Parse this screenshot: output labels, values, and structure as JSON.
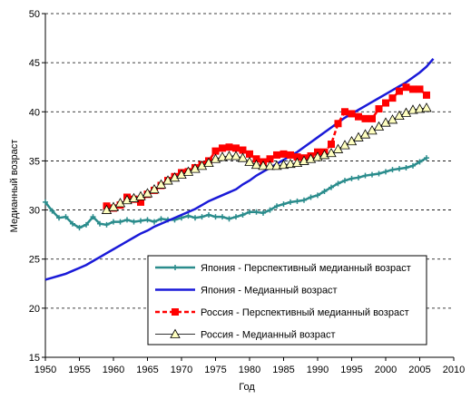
{
  "chart_data": {
    "type": "line",
    "xlabel": "Год",
    "ylabel": "Медианный возраст",
    "xlim": [
      1950,
      2010
    ],
    "xticks": [
      1950,
      1955,
      1960,
      1965,
      1970,
      1975,
      1980,
      1985,
      1990,
      1995,
      2000,
      2005,
      2010
    ],
    "ylim": [
      15,
      50
    ],
    "yticks": [
      15,
      20,
      25,
      30,
      35,
      40,
      45,
      50
    ],
    "grid": true,
    "legend": "lower right",
    "series": [
      {
        "name": "Япония - Перспективный медианный возраст",
        "color": "#2a8c8c",
        "marker": "plus",
        "dash": false,
        "x": [
          1950,
          1951,
          1952,
          1953,
          1954,
          1955,
          1956,
          1957,
          1958,
          1959,
          1960,
          1961,
          1962,
          1963,
          1964,
          1965,
          1966,
          1967,
          1968,
          1969,
          1970,
          1971,
          1972,
          1973,
          1974,
          1975,
          1976,
          1977,
          1978,
          1979,
          1980,
          1981,
          1982,
          1983,
          1984,
          1985,
          1986,
          1987,
          1988,
          1989,
          1990,
          1991,
          1992,
          1993,
          1994,
          1995,
          1996,
          1997,
          1998,
          1999,
          2000,
          2001,
          2002,
          2003,
          2004,
          2005,
          2006
        ],
        "values": [
          30.8,
          29.9,
          29.2,
          29.3,
          28.6,
          28.2,
          28.5,
          29.3,
          28.6,
          28.5,
          28.8,
          28.8,
          29.0,
          28.8,
          28.9,
          29.0,
          28.8,
          29.1,
          29.0,
          29.0,
          29.2,
          29.4,
          29.2,
          29.3,
          29.5,
          29.3,
          29.3,
          29.1,
          29.3,
          29.5,
          29.8,
          29.8,
          29.7,
          30.0,
          30.4,
          30.6,
          30.8,
          30.9,
          31.0,
          31.3,
          31.5,
          31.9,
          32.3,
          32.7,
          33.0,
          33.2,
          33.3,
          33.5,
          33.6,
          33.7,
          33.9,
          34.1,
          34.2,
          34.3,
          34.5,
          34.9,
          35.3
        ]
      },
      {
        "name": "Япония - Медианный возраст",
        "color": "#1a1ad8",
        "marker": "none",
        "dash": false,
        "x": [
          1950,
          1951,
          1952,
          1953,
          1954,
          1955,
          1956,
          1957,
          1958,
          1959,
          1960,
          1961,
          1962,
          1963,
          1964,
          1965,
          1966,
          1967,
          1968,
          1969,
          1970,
          1971,
          1972,
          1973,
          1974,
          1975,
          1976,
          1977,
          1978,
          1979,
          1980,
          1981,
          1982,
          1983,
          1984,
          1985,
          1986,
          1987,
          1988,
          1989,
          1990,
          1991,
          1992,
          1993,
          1994,
          1995,
          1996,
          1997,
          1998,
          1999,
          2000,
          2001,
          2002,
          2003,
          2004,
          2005,
          2006,
          2007
        ],
        "values": [
          22.9,
          23.1,
          23.3,
          23.5,
          23.8,
          24.1,
          24.4,
          24.8,
          25.2,
          25.6,
          26.0,
          26.4,
          26.8,
          27.2,
          27.6,
          27.9,
          28.3,
          28.6,
          28.9,
          29.2,
          29.5,
          29.8,
          30.1,
          30.5,
          30.9,
          31.2,
          31.5,
          31.8,
          32.1,
          32.6,
          33.0,
          33.5,
          33.9,
          34.3,
          34.7,
          35.1,
          35.5,
          35.9,
          36.4,
          36.9,
          37.4,
          37.9,
          38.4,
          38.9,
          39.4,
          39.8,
          40.2,
          40.6,
          41.0,
          41.4,
          41.8,
          42.2,
          42.6,
          43.0,
          43.5,
          44.0,
          44.6,
          45.4
        ]
      },
      {
        "name": "Россия - Перспективный медианный возраст",
        "color": "#ff0000",
        "marker": "square",
        "dash": true,
        "x": [
          1959,
          1960,
          1961,
          1962,
          1963,
          1964,
          1965,
          1966,
          1967,
          1968,
          1969,
          1970,
          1971,
          1972,
          1973,
          1974,
          1975,
          1976,
          1977,
          1978,
          1979,
          1980,
          1981,
          1982,
          1983,
          1984,
          1985,
          1986,
          1987,
          1988,
          1989,
          1990,
          1991,
          1992,
          1993,
          1994,
          1995,
          1996,
          1997,
          1998,
          1999,
          2000,
          2001,
          2002,
          2003,
          2004,
          2005,
          2006
        ],
        "values": [
          30.4,
          30.2,
          30.5,
          31.3,
          31.1,
          30.8,
          31.6,
          32.0,
          32.5,
          33.0,
          33.4,
          33.8,
          33.9,
          34.3,
          34.6,
          35.0,
          36.0,
          36.3,
          36.4,
          36.3,
          36.1,
          35.7,
          35.2,
          34.9,
          35.2,
          35.6,
          35.7,
          35.6,
          35.4,
          35.3,
          35.5,
          35.9,
          35.9,
          36.7,
          38.8,
          40.0,
          39.8,
          39.5,
          39.3,
          39.3,
          40.3,
          40.9,
          41.4,
          42.1,
          42.5,
          42.3,
          42.3,
          41.7
        ]
      },
      {
        "name": "Россия - Медианный возраст",
        "color": "#333333",
        "marker": "triangle",
        "dash": false,
        "x": [
          1959,
          1960,
          1961,
          1962,
          1963,
          1964,
          1965,
          1966,
          1967,
          1968,
          1969,
          1970,
          1971,
          1972,
          1973,
          1974,
          1975,
          1976,
          1977,
          1978,
          1979,
          1980,
          1981,
          1982,
          1983,
          1984,
          1985,
          1986,
          1987,
          1988,
          1989,
          1990,
          1991,
          1992,
          1993,
          1994,
          1995,
          1996,
          1997,
          1998,
          1999,
          2000,
          2001,
          2002,
          2003,
          2004,
          2005,
          2006
        ],
        "values": [
          30.0,
          30.3,
          30.7,
          31.0,
          31.2,
          31.4,
          31.7,
          32.1,
          32.6,
          33.0,
          33.3,
          33.6,
          33.9,
          34.2,
          34.5,
          34.8,
          35.2,
          35.4,
          35.5,
          35.5,
          35.3,
          34.9,
          34.6,
          34.5,
          34.5,
          34.5,
          34.6,
          34.7,
          34.8,
          35.0,
          35.2,
          35.4,
          35.6,
          35.8,
          36.2,
          36.6,
          37.0,
          37.4,
          37.7,
          38.1,
          38.5,
          38.9,
          39.2,
          39.6,
          39.9,
          40.2,
          40.3,
          40.4
        ]
      }
    ]
  }
}
